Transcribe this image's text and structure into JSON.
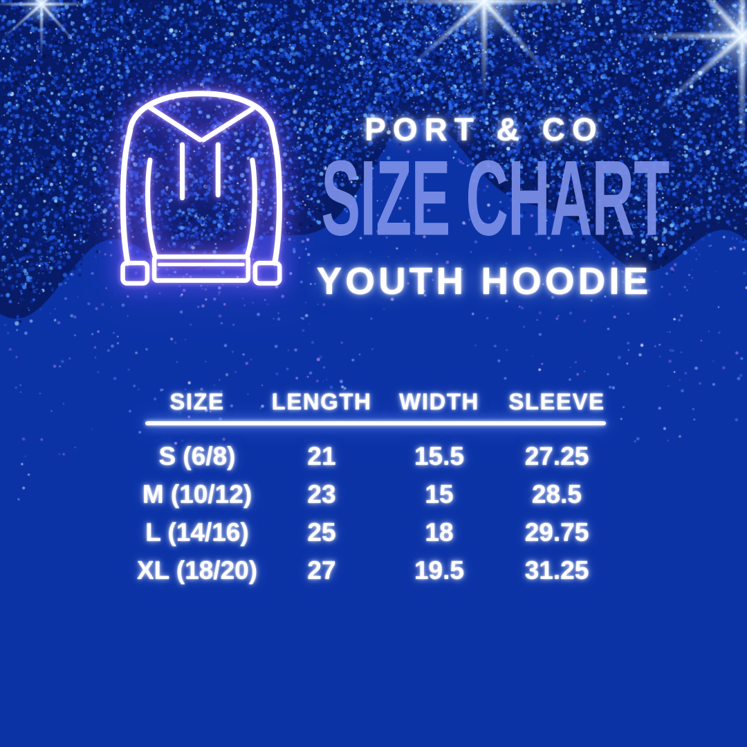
{
  "header": {
    "brand": "PORT & CO",
    "title": "SIZE CHART",
    "subtitle": "YOUTH HOODIE"
  },
  "icons": {
    "hoodie": "hoodie-outline-icon"
  },
  "colors": {
    "background": "#0c33a6",
    "glitter_dark": "#081b66",
    "title_accent": "#7c8fe7",
    "text": "#ffffff",
    "neon_glow_purple": "#8a64ff",
    "divider": "#ffffff"
  },
  "chart_data": {
    "type": "table",
    "brand": "PORT & CO",
    "title": "SIZE CHART",
    "product": "YOUTH HOODIE",
    "columns": [
      "SIZE",
      "LENGTH",
      "WIDTH",
      "SLEEVE"
    ],
    "rows": [
      [
        "S (6/8)",
        "21",
        "15.5",
        "27.25"
      ],
      [
        "M (10/12)",
        "23",
        "15",
        "28.5"
      ],
      [
        "L (14/16)",
        "25",
        "18",
        "29.75"
      ],
      [
        "XL (18/20)",
        "27",
        "19.5",
        "31.25"
      ]
    ]
  }
}
